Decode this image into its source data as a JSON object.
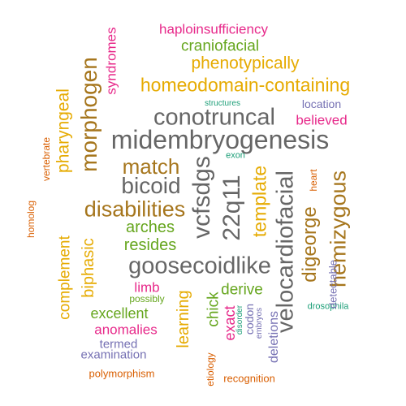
{
  "colors": {
    "magenta": "#e7298a",
    "green": "#66a61e",
    "gold": "#e6ab02",
    "gray": "#666666",
    "brown": "#a6761d",
    "purple": "#7570b3",
    "orange": "#d95f02",
    "teal": "#1b9e77"
  },
  "words": [
    {
      "text": "haploinsufficiency",
      "color": "magenta"
    },
    {
      "text": "craniofacial",
      "color": "green"
    },
    {
      "text": "phenotypically",
      "color": "gold"
    },
    {
      "text": "homeodomain-containing",
      "color": "gold"
    },
    {
      "text": "structures",
      "color": "teal"
    },
    {
      "text": "location",
      "color": "purple"
    },
    {
      "text": "conotruncal",
      "color": "gray"
    },
    {
      "text": "believed",
      "color": "magenta"
    },
    {
      "text": "midembryogenesis",
      "color": "gray"
    },
    {
      "text": "exon",
      "color": "teal"
    },
    {
      "text": "match",
      "color": "brown"
    },
    {
      "text": "bicoid",
      "color": "gray"
    },
    {
      "text": "disabilities",
      "color": "brown"
    },
    {
      "text": "arches",
      "color": "green"
    },
    {
      "text": "resides",
      "color": "green"
    },
    {
      "text": "goosecoidlike",
      "color": "gray"
    },
    {
      "text": "limb",
      "color": "magenta"
    },
    {
      "text": "possibly",
      "color": "green"
    },
    {
      "text": "derive",
      "color": "green"
    },
    {
      "text": "excellent",
      "color": "green"
    },
    {
      "text": "anomalies",
      "color": "magenta"
    },
    {
      "text": "termed",
      "color": "purple"
    },
    {
      "text": "examination",
      "color": "purple"
    },
    {
      "text": "polymorphism",
      "color": "orange"
    },
    {
      "text": "recognition",
      "color": "orange"
    },
    {
      "text": "drosophila",
      "color": "teal"
    },
    {
      "text": "syndromes",
      "color": "magenta"
    },
    {
      "text": "morphogen",
      "color": "brown"
    },
    {
      "text": "pharyngeal",
      "color": "gold"
    },
    {
      "text": "vertebrate",
      "color": "orange"
    },
    {
      "text": "homolog",
      "color": "orange"
    },
    {
      "text": "complement",
      "color": "gold"
    },
    {
      "text": "biphasic",
      "color": "gold"
    },
    {
      "text": "vcfsdgs",
      "color": "gray"
    },
    {
      "text": "22q11",
      "color": "gray"
    },
    {
      "text": "template",
      "color": "gold"
    },
    {
      "text": "velocardiofacial",
      "color": "gray"
    },
    {
      "text": "digeorge",
      "color": "brown"
    },
    {
      "text": "hemizygous",
      "color": "brown"
    },
    {
      "text": "heart",
      "color": "orange"
    },
    {
      "text": "detectable",
      "color": "purple"
    },
    {
      "text": "learning",
      "color": "gold"
    },
    {
      "text": "chick",
      "color": "green"
    },
    {
      "text": "etiology",
      "color": "orange"
    },
    {
      "text": "exact",
      "color": "magenta"
    },
    {
      "text": "disorder",
      "color": "teal"
    },
    {
      "text": "codon",
      "color": "purple"
    },
    {
      "text": "embryos",
      "color": "purple"
    },
    {
      "text": "deletions",
      "color": "purple"
    }
  ]
}
